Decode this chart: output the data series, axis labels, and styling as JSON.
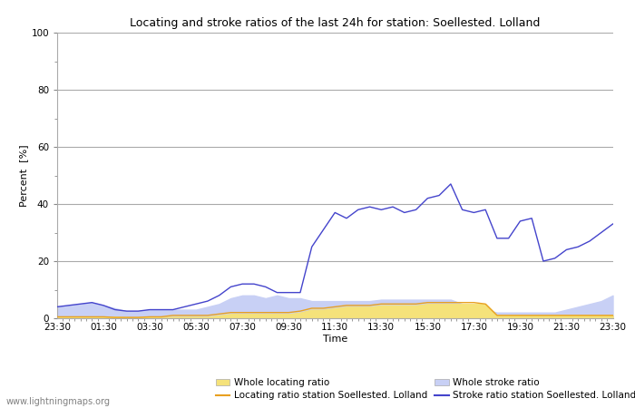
{
  "title": "Locating and stroke ratios of the last 24h for station: Soellested. Lolland",
  "xlabel": "Time",
  "ylabel": "Percent  [%]",
  "xlim": [
    0,
    24
  ],
  "ylim": [
    0,
    100
  ],
  "yticks": [
    0,
    20,
    40,
    60,
    80,
    100
  ],
  "xtick_labels": [
    "23:30",
    "01:30",
    "03:30",
    "05:30",
    "07:30",
    "09:30",
    "11:30",
    "13:30",
    "15:30",
    "17:30",
    "19:30",
    "21:30",
    "23:30"
  ],
  "background_color": "#ffffff",
  "plot_bg_color": "#ffffff",
  "grid_color": "#aaaaaa",
  "watermark": "www.lightningmaps.org",
  "whole_locating_color": "#f5e27a",
  "whole_stroke_color": "#c8d0f5",
  "locating_station_color": "#e8a020",
  "stroke_station_color": "#4444cc",
  "time_points": [
    0,
    0.5,
    1,
    1.5,
    2,
    2.5,
    3,
    3.5,
    4,
    4.5,
    5,
    5.5,
    6,
    6.5,
    7,
    7.5,
    8,
    8.5,
    9,
    9.5,
    10,
    10.5,
    11,
    11.5,
    12,
    12.5,
    13,
    13.5,
    14,
    14.5,
    15,
    15.5,
    16,
    16.5,
    17,
    17.5,
    18,
    18.5,
    19,
    19.5,
    20,
    20.5,
    21,
    21.5,
    22,
    22.5,
    23,
    23.5,
    24
  ],
  "whole_locating": [
    0.5,
    0.5,
    0.5,
    0.5,
    0.5,
    0.5,
    0.3,
    0.3,
    0.3,
    0.3,
    0.5,
    0.5,
    0.5,
    0.5,
    1,
    1.5,
    1.5,
    1.5,
    1.5,
    1.5,
    1.5,
    2,
    3,
    3,
    3.5,
    4,
    4,
    4,
    4.5,
    4.5,
    4.5,
    4.5,
    5,
    5,
    5,
    5,
    5,
    5,
    1,
    1,
    1,
    1,
    1,
    1,
    1,
    1,
    1,
    1,
    1
  ],
  "whole_stroke": [
    4,
    4.5,
    5,
    5.5,
    4.5,
    3.5,
    2.5,
    2.5,
    3,
    3,
    3,
    3,
    3,
    4,
    5,
    7,
    8,
    8,
    7,
    8,
    7,
    7,
    6,
    6,
    6,
    6,
    6,
    6,
    6.5,
    6.5,
    6.5,
    6.5,
    6.5,
    6.5,
    6.5,
    5,
    3,
    3,
    2,
    2,
    2,
    2,
    2,
    2,
    3,
    4,
    5,
    6,
    8
  ],
  "locating_station": [
    0.5,
    0.5,
    0.5,
    0.5,
    0.5,
    0.3,
    0.3,
    0.3,
    0.5,
    0.5,
    1,
    1,
    1,
    1,
    1.5,
    2,
    2,
    2,
    2,
    2,
    2,
    2.5,
    3.5,
    3.5,
    4,
    4.5,
    4.5,
    4.5,
    5,
    5,
    5,
    5,
    5.5,
    5.5,
    5.5,
    5.5,
    5.5,
    5,
    1,
    1,
    1,
    1,
    1,
    1,
    1,
    1,
    1,
    1,
    1
  ],
  "stroke_station": [
    4,
    4.5,
    5,
    5.5,
    4.5,
    3,
    2.5,
    2.5,
    3,
    3,
    3,
    4,
    5,
    6,
    8,
    11,
    12,
    12,
    11,
    9,
    9,
    9,
    25,
    31,
    37,
    35,
    38,
    39,
    38,
    39,
    37,
    38,
    42,
    43,
    47,
    38,
    37,
    38,
    28,
    28,
    34,
    35,
    20,
    21,
    24,
    25,
    27,
    30,
    33
  ]
}
